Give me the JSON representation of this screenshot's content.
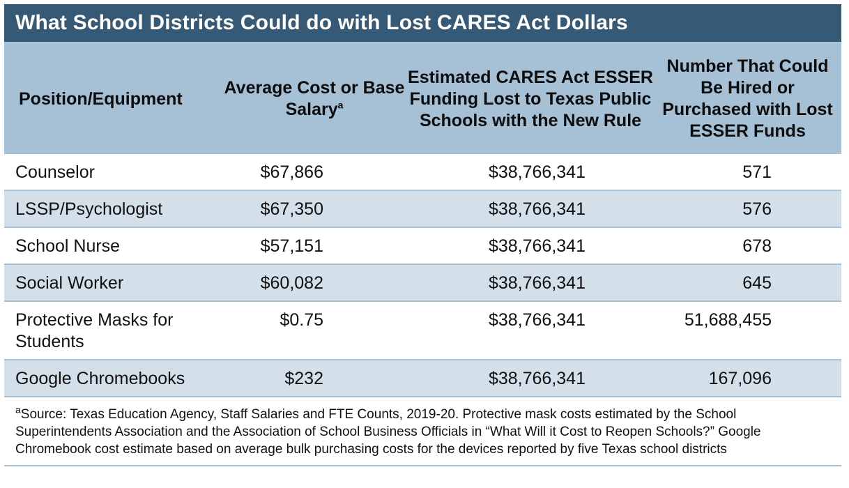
{
  "title": "What School Districts Could do with Lost CARES Act Dollars",
  "headers": {
    "position": "Position/Equipment",
    "avg_cost": "Average Cost or Base Salary",
    "avg_cost_sup": "a",
    "funding_lost": "Estimated CARES Act ESSER Funding Lost to Texas Public Schools with the New Rule",
    "number_hired": "Number That Could Be Hired or Purchased with Lost ESSER Funds"
  },
  "rows": [
    {
      "position": "Counselor",
      "avg_cost": "$67,866",
      "funding_lost": "$38,766,341",
      "number_hired": "571"
    },
    {
      "position": "LSSP/Psychologist",
      "avg_cost": "$67,350",
      "funding_lost": "$38,766,341",
      "number_hired": "576"
    },
    {
      "position": "School Nurse",
      "avg_cost": "$57,151",
      "funding_lost": "$38,766,341",
      "number_hired": "678"
    },
    {
      "position": "Social Worker",
      "avg_cost": "$60,082",
      "funding_lost": "$38,766,341",
      "number_hired": "645"
    },
    {
      "position": "Protective Masks for Students",
      "avg_cost": "$0.75",
      "funding_lost": "$38,766,341",
      "number_hired": "51,688,455"
    },
    {
      "position": "Google Chromebooks",
      "avg_cost": "$232",
      "funding_lost": "$38,766,341",
      "number_hired": "167,096"
    }
  ],
  "footnote": {
    "marker": "a",
    "text": "Source: Texas Education Agency, Staff Salaries and FTE Counts, 2019-20. Protective mask costs estimated by the School Superintendents Association and the Association of School Business Officials in “What Will it Cost to Reopen Schools?” Google Chromebook cost estimate based on average bulk purchasing costs for the devices reported by five Texas school districts"
  },
  "colors": {
    "title_bg": "#365a76",
    "header_bg": "#a6c0d6",
    "row_alt_bg": "#d3e0ea"
  }
}
